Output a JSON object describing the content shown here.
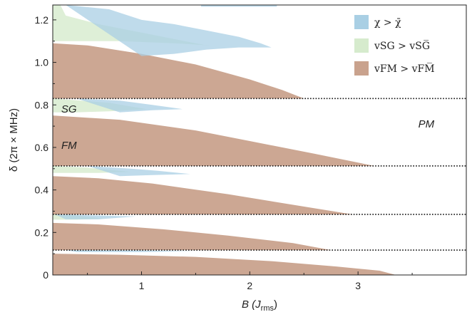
{
  "chart_data": {
    "type": "area",
    "title": "",
    "xlabel": {
      "base": "B (J",
      "sub": "rms",
      "close": ")"
    },
    "ylabel": "δ (2π × MHz)",
    "xlim": [
      0.18,
      4.0
    ],
    "ylim": [
      0,
      1.27
    ],
    "x_ticks": [
      1,
      2,
      3
    ],
    "y_ticks": [
      0,
      0.2,
      0.4,
      0.6,
      0.8,
      1.0,
      1.2
    ],
    "x_tick_labels": [
      "1",
      "2",
      "3"
    ],
    "y_tick_labels": [
      "0",
      "0.2",
      "0.4",
      "0.6",
      "0.8",
      "1.0",
      "1.2"
    ],
    "legend": {
      "position": "top-right",
      "entries": [
        {
          "key": "chi",
          "text": "χ > χ̄",
          "color": "#a9cfe4"
        },
        {
          "key": "sg",
          "text": "vSG > vSG̅",
          "color": "#d6ebcd"
        },
        {
          "key": "fm",
          "text": "vFM > vFM̅",
          "color": "#c9a28d"
        }
      ]
    },
    "phase_labels": [
      {
        "text": "SG",
        "x": 0.33,
        "y": 0.78
      },
      {
        "text": "FM",
        "x": 0.33,
        "y": 0.61
      },
      {
        "text": "PM",
        "x": 3.63,
        "y": 0.71
      }
    ],
    "dotted_lines_y": [
      0.83,
      0.513,
      0.285,
      0.117
    ],
    "bands": [
      {
        "y0": 0.83,
        "y1": 1.27,
        "fm": [
          [
            0.18,
            1.09
          ],
          [
            0.5,
            1.08
          ],
          [
            1.0,
            1.04
          ],
          [
            1.5,
            0.99
          ],
          [
            2.0,
            0.92
          ],
          [
            2.3,
            0.87
          ],
          [
            2.5,
            0.83
          ]
        ],
        "sg": [
          [
            0.18,
            1.27
          ],
          [
            0.25,
            1.27
          ],
          [
            0.3,
            1.22
          ],
          [
            0.6,
            1.18
          ],
          [
            1.0,
            1.14
          ],
          [
            1.3,
            1.11
          ],
          [
            1.6,
            1.08
          ],
          [
            1.63,
            1.08
          ],
          [
            1.3,
            1.09
          ],
          [
            0.8,
            1.1
          ],
          [
            0.4,
            1.1
          ],
          [
            0.18,
            1.1
          ]
        ],
        "chi": [
          [
            0.3,
            1.27
          ],
          [
            0.7,
            1.25
          ],
          [
            1.0,
            1.2
          ],
          [
            1.3,
            1.18
          ],
          [
            1.6,
            1.15
          ],
          [
            1.9,
            1.12
          ],
          [
            2.1,
            1.09
          ],
          [
            2.2,
            1.07
          ],
          [
            1.9,
            1.07
          ],
          [
            1.6,
            1.06
          ],
          [
            1.3,
            1.04
          ],
          [
            1.0,
            1.03
          ]
        ],
        "chi_top": [
          [
            1.55,
            1.262
          ],
          [
            2.25,
            1.262
          ],
          [
            2.25,
            1.27
          ],
          [
            1.55,
            1.27
          ]
        ]
      },
      {
        "y0": 0.513,
        "y1": 0.83,
        "fm": [
          [
            0.18,
            0.75
          ],
          [
            0.8,
            0.73
          ],
          [
            1.5,
            0.68
          ],
          [
            2.0,
            0.63
          ],
          [
            2.6,
            0.57
          ],
          [
            3.15,
            0.513
          ]
        ],
        "sg": [
          [
            0.18,
            0.83
          ],
          [
            0.7,
            0.81
          ],
          [
            1.05,
            0.78
          ],
          [
            0.7,
            0.77
          ],
          [
            0.4,
            0.765
          ],
          [
            0.18,
            0.765
          ]
        ],
        "chi": [
          [
            0.4,
            0.83
          ],
          [
            0.8,
            0.82
          ],
          [
            1.1,
            0.8
          ],
          [
            1.38,
            0.78
          ],
          [
            1.1,
            0.775
          ],
          [
            0.8,
            0.765
          ]
        ]
      },
      {
        "y0": 0.285,
        "y1": 0.513,
        "fm": [
          [
            0.18,
            0.465
          ],
          [
            0.6,
            0.455
          ],
          [
            1.1,
            0.43
          ],
          [
            1.8,
            0.38
          ],
          [
            2.4,
            0.33
          ],
          [
            2.95,
            0.285
          ]
        ],
        "sg": [
          [
            0.18,
            0.513
          ],
          [
            0.5,
            0.505
          ],
          [
            0.9,
            0.485
          ],
          [
            0.6,
            0.48
          ],
          [
            0.18,
            0.48
          ]
        ],
        "chi": [
          [
            0.5,
            0.513
          ],
          [
            0.9,
            0.5
          ],
          [
            1.15,
            0.49
          ],
          [
            1.45,
            0.475
          ],
          [
            1.1,
            0.47
          ],
          [
            0.8,
            0.465
          ]
        ]
      },
      {
        "y0": 0.117,
        "y1": 0.285,
        "fm": [
          [
            0.18,
            0.245
          ],
          [
            0.6,
            0.238
          ],
          [
            1.2,
            0.215
          ],
          [
            1.8,
            0.185
          ],
          [
            2.4,
            0.15
          ],
          [
            2.75,
            0.117
          ]
        ],
        "sg": [
          [
            0.18,
            0.285
          ],
          [
            0.4,
            0.28
          ],
          [
            0.65,
            0.265
          ],
          [
            0.4,
            0.26
          ],
          [
            0.18,
            0.26
          ]
        ],
        "chi": [
          [
            0.2,
            0.285
          ],
          [
            0.6,
            0.28
          ],
          [
            0.95,
            0.275
          ],
          [
            0.6,
            0.262
          ],
          [
            0.3,
            0.262
          ]
        ]
      },
      {
        "y0": 0.0,
        "y1": 0.117,
        "fm": [
          [
            0.18,
            0.1
          ],
          [
            0.8,
            0.095
          ],
          [
            1.5,
            0.085
          ],
          [
            2.2,
            0.065
          ],
          [
            2.8,
            0.04
          ],
          [
            3.2,
            0.02
          ],
          [
            3.35,
            0.0
          ]
        ],
        "sg": [],
        "chi": [
          [
            0.3,
            0.117
          ],
          [
            1.0,
            0.115
          ],
          [
            1.5,
            0.112
          ],
          [
            1.0,
            0.108
          ],
          [
            0.4,
            0.108
          ]
        ]
      }
    ]
  }
}
